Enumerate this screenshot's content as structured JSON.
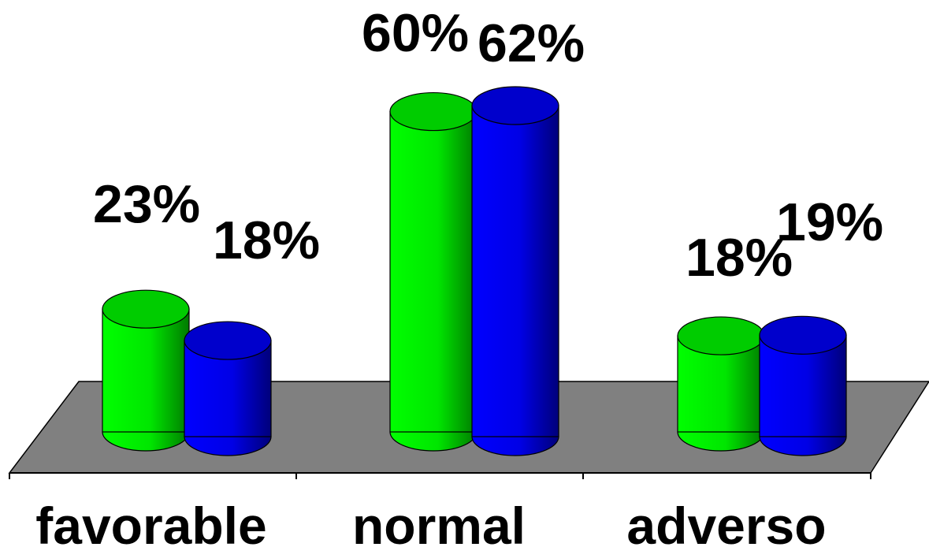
{
  "chart_data": {
    "type": "bar",
    "style": "3d-cylinder",
    "categories": [
      "favorable",
      "normal",
      "adverso"
    ],
    "series": [
      {
        "values": [
          23,
          60,
          18
        ],
        "color": "#00e600",
        "value_labels": [
          "23%",
          "60%",
          "18%"
        ]
      },
      {
        "values": [
          18,
          62,
          19
        ],
        "color": "#0000ff",
        "value_labels": [
          "18%",
          "62%",
          "19%"
        ]
      }
    ],
    "ylim": [
      0,
      62
    ],
    "floor_color": "#808080",
    "grid": false,
    "legend": "none"
  }
}
